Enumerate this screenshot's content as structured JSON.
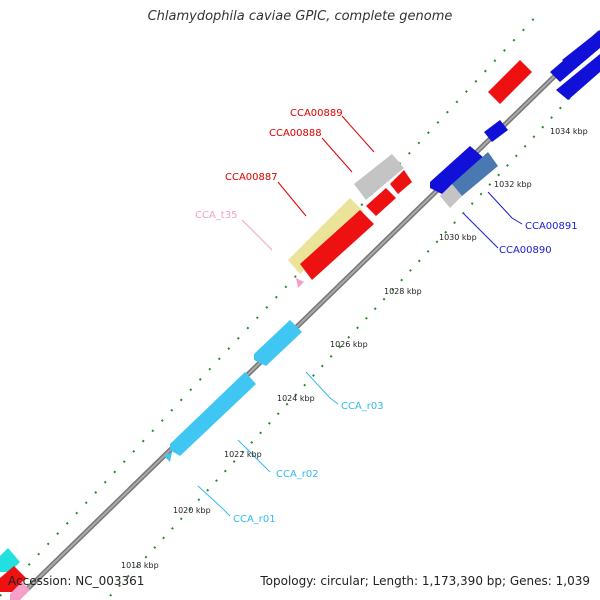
{
  "title": "Chlamydophila caviae GPIC, complete genome",
  "footer": {
    "accession": "Accession: NC_003361",
    "topology": "Topology: circular; Length: 1,173,390 bp; Genes: 1,039"
  },
  "scale_ticks": [
    "1018 kbp",
    "1020 kbp",
    "1022 kbp",
    "1024 kbp",
    "1026 kbp",
    "1028 kbp",
    "1030 kbp",
    "1032 kbp",
    "1034 kbp"
  ],
  "gene_labels": [
    {
      "id": "CCA00889",
      "color": "#dd0000"
    },
    {
      "id": "CCA00888",
      "color": "#dd0000"
    },
    {
      "id": "CCA00887",
      "color": "#dd0000"
    },
    {
      "id": "CCA_t35",
      "color": "#f0a0c8"
    },
    {
      "id": "CCA00891",
      "color": "#1a1ad0"
    },
    {
      "id": "CCA00890",
      "color": "#1a1ad0"
    },
    {
      "id": "CCA_r03",
      "color": "#33bbee"
    },
    {
      "id": "CCA_r02",
      "color": "#33bbee"
    },
    {
      "id": "CCA_r01",
      "color": "#33bbee"
    }
  ],
  "colors": {
    "backbone": "#888888",
    "forward_red": "#ee1111",
    "reverse_blue": "#1010d8",
    "rrna_cyan": "#3fc6f2",
    "trna_pink": "#f4a0c8",
    "pseudo_yellow": "#ece39a",
    "grey_gene": "#c4c4c4",
    "steel_blue": "#4a78b0",
    "tick_green": "#2a8a2a"
  }
}
